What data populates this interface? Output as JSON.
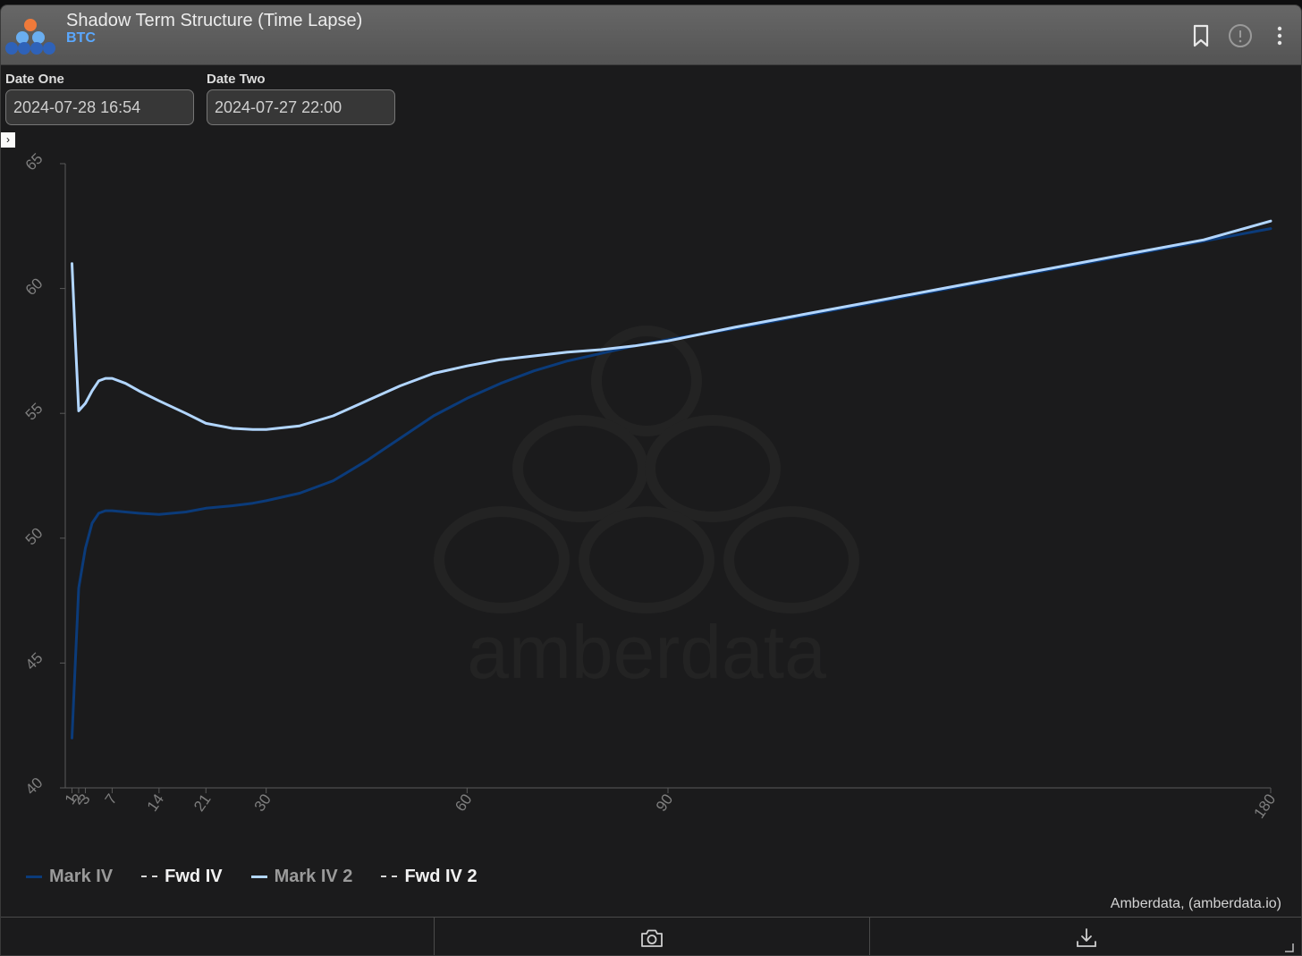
{
  "header": {
    "title": "Shadow Term Structure (Time Lapse)",
    "subtitle": "BTC"
  },
  "controls": {
    "date_one_label": "Date One",
    "date_one_value": "2024-07-28 16:54",
    "date_two_label": "Date Two",
    "date_two_value": "2024-07-27 22:00"
  },
  "expander_glyph": "›",
  "watermark_text": "amberdata",
  "credit": "Amberdata, (amberdata.io)",
  "colors": {
    "mark_iv": "#0b3b7a",
    "mark_iv_2": "#b2d6ff",
    "fwd": "#d8d8d8",
    "accent": "#5aa8ff"
  },
  "chart_data": {
    "type": "line",
    "xlabel": "",
    "ylabel": "",
    "xlim": [
      0,
      180
    ],
    "ylim": [
      40,
      65
    ],
    "x_ticks": [
      1,
      2,
      3,
      7,
      14,
      21,
      30,
      60,
      90,
      180
    ],
    "y_ticks": [
      40,
      45,
      50,
      55,
      60,
      65
    ],
    "grid": false,
    "legend_position": "bottom-left",
    "legend": [
      "Mark IV",
      "Fwd IV",
      "Mark IV 2",
      "Fwd IV 2"
    ],
    "series": [
      {
        "name": "Mark IV",
        "color": "#0b3b7a",
        "style": "solid",
        "x": [
          1,
          1.5,
          2,
          3,
          4,
          5,
          6,
          7,
          9,
          11,
          14,
          18,
          21,
          25,
          28,
          30,
          35,
          40,
          45,
          50,
          55,
          60,
          65,
          70,
          75,
          80,
          85,
          90,
          100,
          110,
          120,
          130,
          140,
          150,
          160,
          170,
          180
        ],
        "y": [
          42.0,
          45.0,
          48.0,
          49.6,
          50.6,
          51.0,
          51.1,
          51.1,
          51.05,
          51.0,
          50.95,
          51.05,
          51.2,
          51.3,
          51.4,
          51.5,
          51.8,
          52.3,
          53.1,
          54.0,
          54.9,
          55.6,
          56.2,
          56.7,
          57.1,
          57.4,
          57.7,
          57.95,
          58.4,
          58.9,
          59.4,
          59.9,
          60.4,
          60.9,
          61.4,
          61.9,
          62.4
        ]
      },
      {
        "name": "Fwd IV",
        "color": "#d8d8d8",
        "style": "dashed",
        "x": [],
        "y": []
      },
      {
        "name": "Mark IV 2",
        "color": "#b2d6ff",
        "style": "solid",
        "x": [
          1,
          1.5,
          2,
          3,
          4,
          5,
          6,
          7,
          9,
          11,
          14,
          18,
          21,
          25,
          28,
          30,
          35,
          40,
          45,
          50,
          55,
          60,
          65,
          70,
          75,
          80,
          85,
          90,
          100,
          110,
          120,
          130,
          140,
          150,
          160,
          170,
          180
        ],
        "y": [
          61.0,
          58.0,
          55.1,
          55.4,
          55.9,
          56.3,
          56.4,
          56.4,
          56.2,
          55.9,
          55.5,
          55.0,
          54.6,
          54.4,
          54.35,
          54.35,
          54.5,
          54.9,
          55.5,
          56.1,
          56.6,
          56.9,
          57.15,
          57.3,
          57.45,
          57.55,
          57.7,
          57.9,
          58.45,
          58.95,
          59.45,
          59.95,
          60.45,
          60.95,
          61.45,
          61.95,
          62.7
        ]
      },
      {
        "name": "Fwd IV 2",
        "color": "#d8d8d8",
        "style": "dashed",
        "x": [],
        "y": []
      }
    ]
  }
}
